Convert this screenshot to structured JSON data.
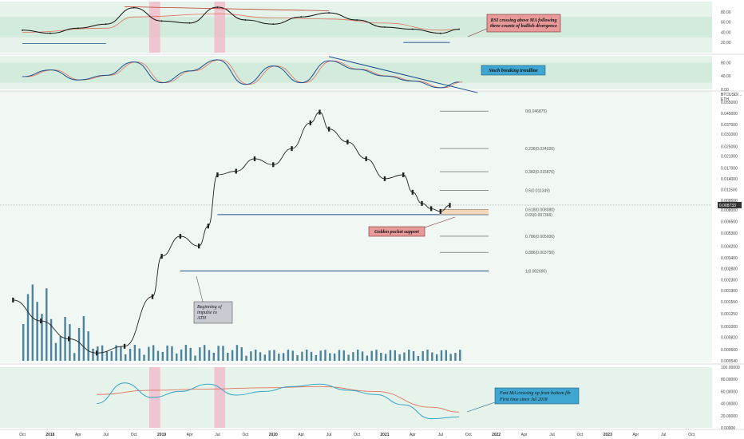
{
  "colors": {
    "panel_bg": "#e6f3ea",
    "band_bg": "#d3ebdc",
    "rsi_line": "#111111",
    "rsi_ma": "#e0735f",
    "stoch_k": "#1f4e8c",
    "stoch_d": "#e0735f",
    "candle": "#222222",
    "volume": "#2e6f8e",
    "volume_ma": "#b87766",
    "fib_line": "#555555",
    "support_line": "#1f4e8c",
    "pink": "#f1b6c8",
    "osc_fast": "#36a6c6",
    "osc_slow": "#e0735f",
    "osc_other": "#9b5f86",
    "note_red": "#e89a9a",
    "note_blue": "#3ea6d0",
    "note_gray": "#c8ccd2",
    "price_tag": "#333333"
  },
  "rsi_panel": {
    "axis_ticks": [
      "80.00",
      "60.00",
      "40.00",
      "20.00"
    ],
    "annotation": "RSI crossing above MA following three counts of bullish divergence"
  },
  "stoch_panel": {
    "axis_ticks": [
      "80.00",
      "40.00",
      "0.00"
    ],
    "annotation": "Stoch breaking trendline"
  },
  "price_panel": {
    "unit_label_1": "BTCUSD/...",
    "unit_label_2": "ETH",
    "axis_ticks": [
      "0.055000",
      "0.045000",
      "0.037000",
      "0.031000",
      "0.025000",
      "0.021000",
      "0.017000",
      "0.014000",
      "0.011500",
      "0.009500",
      "0.008000",
      "0.006500",
      "0.005300",
      "0.004200",
      "0.003400",
      "0.002800",
      "0.002300",
      "0.001900",
      "0.001550",
      "0.001250",
      "0.001000",
      "0.000820",
      "0.000660",
      "0.000540"
    ],
    "current_price": "0.008733",
    "fib_levels": [
      {
        "label": "0(0.046875)"
      },
      {
        "label": "0.236(0.024026)"
      },
      {
        "label": "0.382(0.015876)"
      },
      {
        "label": "0.5(0.011349)"
      },
      {
        "label": "0.618(0.008080)"
      },
      {
        "label": "0.65(0.007366)"
      },
      {
        "label": "0.786(0.005006)"
      },
      {
        "label": "0.886(0.003750)"
      },
      {
        "label": "1(0.002690)"
      }
    ],
    "annotations": {
      "golden_pocket": "Golden pocket support",
      "impulse": "Beginning of impulse to ATH"
    }
  },
  "osc_panel": {
    "axis_ticks": [
      "100.00000",
      "80.00000",
      "60.00000",
      "40.00000",
      "20.00000",
      "0.00000"
    ],
    "annotation": "Fast MA crossing up from bottom fib First time since Jul 2018"
  },
  "time_axis": [
    {
      "label": "Oct",
      "year": false
    },
    {
      "label": "2018",
      "year": true
    },
    {
      "label": "Apr",
      "year": false
    },
    {
      "label": "Jul",
      "year": false
    },
    {
      "label": "Oct",
      "year": false
    },
    {
      "label": "2019",
      "year": true
    },
    {
      "label": "Apr",
      "year": false
    },
    {
      "label": "Jul",
      "year": false
    },
    {
      "label": "Oct",
      "year": false
    },
    {
      "label": "2020",
      "year": true
    },
    {
      "label": "Apr",
      "year": false
    },
    {
      "label": "Jul",
      "year": false
    },
    {
      "label": "Oct",
      "year": false
    },
    {
      "label": "2021",
      "year": true
    },
    {
      "label": "Apr",
      "year": false
    },
    {
      "label": "Jul",
      "year": false
    },
    {
      "label": "Oct",
      "year": false
    },
    {
      "label": "2022",
      "year": true
    },
    {
      "label": "Apr",
      "year": false
    },
    {
      "label": "Jul",
      "year": false
    },
    {
      "label": "Oct",
      "year": false
    },
    {
      "label": "2023",
      "year": true
    },
    {
      "label": "Apr",
      "year": false
    },
    {
      "label": "Jul",
      "year": false
    },
    {
      "label": "Oct",
      "year": false
    }
  ],
  "chart_data": {
    "type": "line",
    "y_scale": "log",
    "x_range": [
      "2017-10",
      "2023-10"
    ],
    "y_range": [
      0.00054,
      0.055
    ],
    "price_series": {
      "name": "",
      "x": [
        "2017-09",
        "2017-12",
        "2018-03",
        "2018-06",
        "2018-09",
        "2018-12",
        "2019-01",
        "2019-03",
        "2019-05",
        "2019-06",
        "2019-07",
        "2019-09",
        "2019-11",
        "2020-01",
        "2020-03",
        "2020-05",
        "2020-06",
        "2020-07",
        "2020-09",
        "2020-11",
        "2021-01",
        "2021-03",
        "2021-04",
        "2021-05",
        "2021-06",
        "2021-07",
        "2021-08"
      ],
      "y": [
        0.0016,
        0.0011,
        0.0008,
        0.00062,
        0.0007,
        0.0017,
        0.0035,
        0.005,
        0.0042,
        0.006,
        0.015,
        0.016,
        0.02,
        0.018,
        0.024,
        0.038,
        0.046,
        0.034,
        0.027,
        0.02,
        0.014,
        0.015,
        0.011,
        0.009,
        0.0082,
        0.0078,
        0.0087
      ]
    },
    "fib_retracement": [
      {
        "ratio": 0,
        "price": 0.046875
      },
      {
        "ratio": 0.236,
        "price": 0.024026
      },
      {
        "ratio": 0.382,
        "price": 0.015876
      },
      {
        "ratio": 0.5,
        "price": 0.011349
      },
      {
        "ratio": 0.618,
        "price": 0.00808
      },
      {
        "ratio": 0.65,
        "price": 0.007366
      },
      {
        "ratio": 0.786,
        "price": 0.005006
      },
      {
        "ratio": 0.886,
        "price": 0.00375
      },
      {
        "ratio": 1,
        "price": 0.00269
      }
    ],
    "current_price": 0.008733,
    "rsi": {
      "x": [
        "2017-10",
        "2018-01",
        "2018-04",
        "2018-07",
        "2018-10",
        "2019-01",
        "2019-04",
        "2019-07",
        "2019-10",
        "2020-01",
        "2020-04",
        "2020-07",
        "2020-10",
        "2021-01",
        "2021-04",
        "2021-07",
        "2021-09"
      ],
      "y": [
        44,
        38,
        48,
        56,
        88,
        62,
        58,
        89,
        64,
        56,
        70,
        78,
        64,
        50,
        46,
        38,
        46
      ]
    },
    "rsi_ma": {
      "x": [
        "2017-10",
        "2018-07",
        "2018-10",
        "2019-07",
        "2020-01",
        "2020-07",
        "2021-01",
        "2021-07",
        "2021-09"
      ],
      "y": [
        40,
        48,
        70,
        76,
        68,
        66,
        58,
        44,
        46
      ]
    },
    "stoch": {
      "x": [
        "2017-10",
        "2018-01",
        "2018-04",
        "2018-07",
        "2018-10",
        "2019-01",
        "2019-04",
        "2019-07",
        "2019-10",
        "2020-01",
        "2020-04",
        "2020-07",
        "2020-10",
        "2021-01",
        "2021-04",
        "2021-07",
        "2021-09"
      ],
      "y": [
        38,
        58,
        28,
        42,
        82,
        20,
        55,
        88,
        15,
        70,
        20,
        85,
        60,
        40,
        25,
        5,
        22
      ]
    },
    "oscillator": {
      "fast": {
        "x": [
          "2018-06",
          "2018-09",
          "2018-12",
          "2019-03",
          "2019-06",
          "2019-09",
          "2019-12",
          "2020-03",
          "2020-06",
          "2020-09",
          "2020-12",
          "2021-03",
          "2021-06",
          "2021-09"
        ],
        "y": [
          40,
          74,
          50,
          60,
          72,
          54,
          60,
          68,
          72,
          62,
          55,
          38,
          15,
          18
        ]
      },
      "slow": {
        "x": [
          "2018-06",
          "2018-12",
          "2019-06",
          "2019-12",
          "2020-06",
          "2020-12",
          "2021-06",
          "2021-09"
        ],
        "y": [
          55,
          62,
          64,
          66,
          68,
          60,
          34,
          26
        ]
      }
    }
  }
}
